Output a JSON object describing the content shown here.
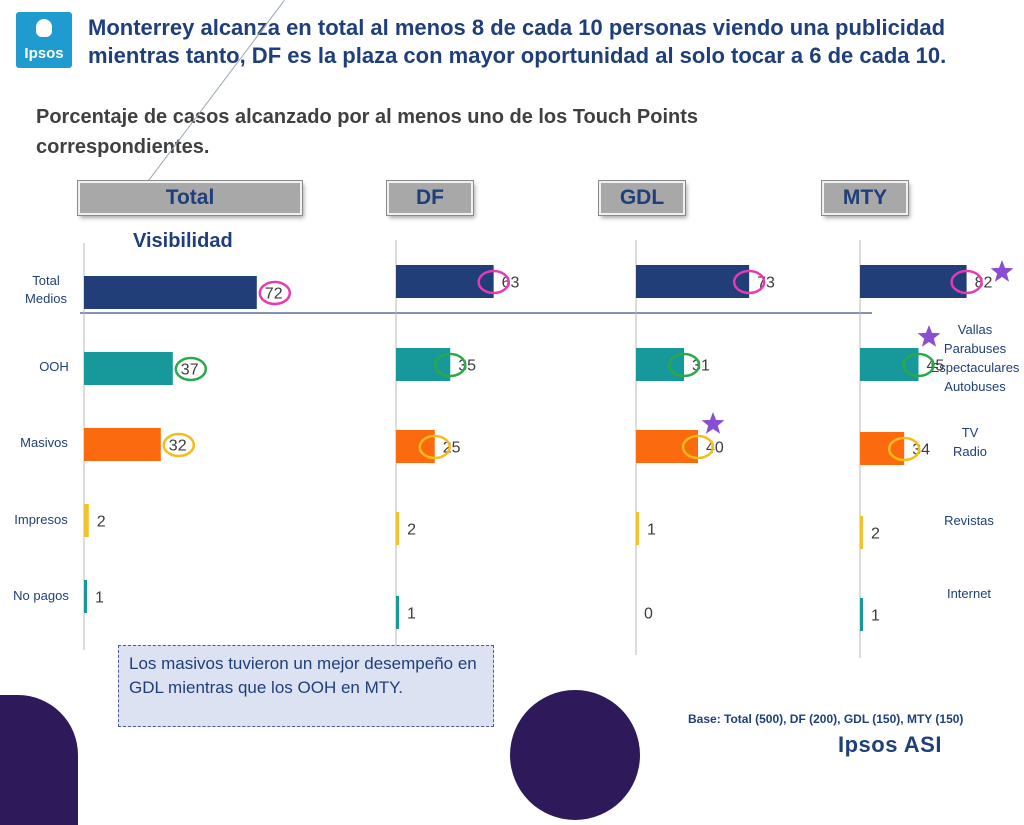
{
  "header": {
    "logo_text": "Ipsos",
    "title": "Monterrey alcanza en total al menos 8 de cada 10 personas viendo una publicidad mientras tanto, DF es la plaza con mayor oportunidad al solo tocar a 6 de cada 10.",
    "subtitle": "Porcentaje de casos alcanzado por al menos uno de los Touch Points correspondientes."
  },
  "section_label": "Visibilidad",
  "note": "Los masivos tuvieron un mejor desempeño en GDL mientras que los OOH en MTY.",
  "base": "Base: Total (500), DF (200), GDL (150), MTY (150)",
  "brand": "Ipsos ASI",
  "colors": {
    "total_medios": "#213e78",
    "ooh": "#17999b",
    "masivos": "#fb6a0e",
    "impresos": "#f2c12e",
    "no_pagos": "#17999b",
    "highlight_pink": "#e63ab4",
    "highlight_green": "#2aa84a",
    "highlight_yellow": "#f4bc1c",
    "star": "#8a4fd0"
  },
  "chart_data": {
    "type": "bar",
    "orientation": "horizontal",
    "panels": [
      "Total",
      "DF",
      "GDL",
      "MTY"
    ],
    "categories": [
      "Total Medios",
      "OOH",
      "Masivos",
      "Impresos",
      "No pagos"
    ],
    "category_details": {
      "OOH": [
        "Vallas",
        "Parabuses",
        "Espectaculares",
        "Autobuses"
      ],
      "Masivos": [
        "TV",
        "Radio"
      ],
      "Impresos": [
        "Revistas"
      ],
      "No pagos": [
        "Internet"
      ]
    },
    "series": [
      {
        "name": "Total",
        "values": [
          72,
          37,
          32,
          2,
          1
        ]
      },
      {
        "name": "DF",
        "values": [
          63,
          35,
          25,
          2,
          1
        ]
      },
      {
        "name": "GDL",
        "values": [
          73,
          31,
          40,
          1,
          0
        ]
      },
      {
        "name": "MTY",
        "values": [
          82,
          45,
          34,
          2,
          1
        ]
      }
    ],
    "highlighted_stars": [
      {
        "panel": "GDL",
        "category": "Masivos"
      },
      {
        "panel": "MTY",
        "category": "Total Medios"
      },
      {
        "panel": "MTY",
        "category": "OOH"
      }
    ],
    "xlim": [
      0,
      100
    ]
  }
}
